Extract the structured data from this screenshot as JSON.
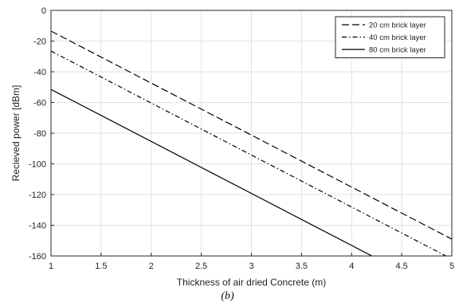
{
  "chart_data": {
    "type": "line",
    "xlabel": "Thickness of air dried Concrete (m)",
    "ylabel": "Recieved power [dBm]",
    "xlim": [
      1,
      5
    ],
    "ylim": [
      -160,
      0
    ],
    "xticks": [
      1,
      1.5,
      2,
      2.5,
      3,
      3.5,
      4,
      4.5,
      5
    ],
    "yticks": [
      0,
      -20,
      -40,
      -60,
      -80,
      -100,
      -120,
      -140,
      -160
    ],
    "grid": true,
    "legend_position": "top-right",
    "series": [
      {
        "name": "20 cm brick layer",
        "style": "dashed",
        "x": [
          1,
          5
        ],
        "y": [
          -13.5,
          -149
        ]
      },
      {
        "name": "40 cm brick layer",
        "style": "dash-dot",
        "x": [
          1,
          5
        ],
        "y": [
          -26.5,
          -162
        ]
      },
      {
        "name": "80 cm brick layer",
        "style": "solid",
        "x": [
          1,
          5
        ],
        "y": [
          -51.5,
          -187
        ]
      }
    ]
  },
  "caption": "(b)",
  "colors": {
    "line": "#000000",
    "grid": "#e2e2e2",
    "axis": "#262626"
  }
}
